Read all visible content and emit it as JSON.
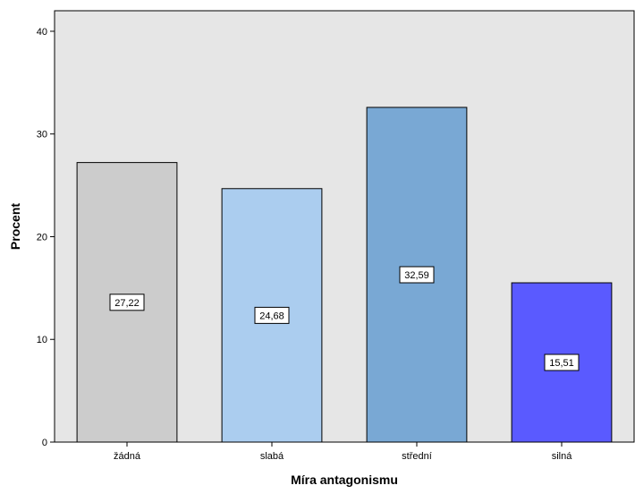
{
  "chart_data": {
    "type": "bar",
    "title": "",
    "xlabel": "Míra antagonismu",
    "ylabel": "Procent",
    "categories": [
      "žádná",
      "slabá",
      "střední",
      "silná"
    ],
    "values": [
      27.22,
      24.68,
      32.59,
      15.51
    ],
    "value_labels": [
      "27,22",
      "24,68",
      "32,59",
      "15,51"
    ],
    "ylim": [
      0,
      42
    ],
    "yticks": [
      0,
      10,
      20,
      30,
      40
    ],
    "ytick_labels": [
      "0",
      "10",
      "20",
      "30",
      "40"
    ],
    "bar_colors": [
      "#cccccc",
      "#abcdef",
      "#79a8d4",
      "#5a5aff"
    ],
    "plot_background": "#e6e6e6",
    "grid": false,
    "legend": "none"
  }
}
